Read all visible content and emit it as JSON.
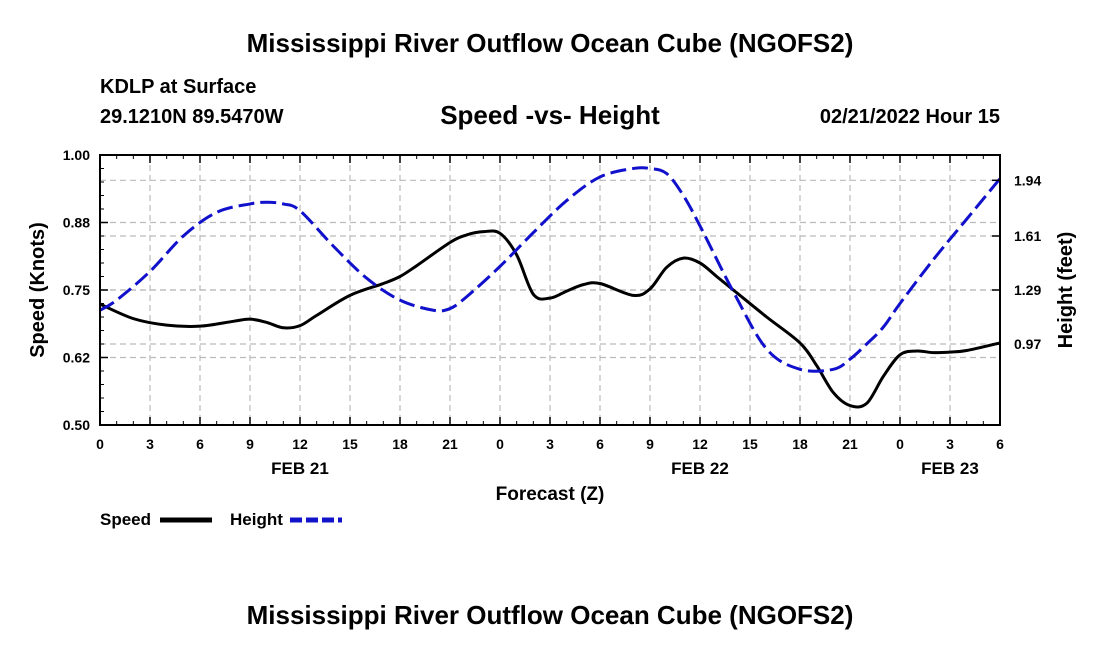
{
  "header": {
    "title": "Mississippi River Outflow Ocean Cube (NGOFS2)",
    "station": "KDLP at Surface",
    "coords": "29.1210N  89.5470W",
    "datetime": "02/21/2022 Hour 15"
  },
  "footer": {
    "title": "Mississippi River Outflow Ocean Cube (NGOFS2)"
  },
  "chart_data": {
    "type": "line",
    "title": "Speed -vs- Height",
    "xlabel": "Forecast (Z)",
    "ylabel_left": "Speed (Knots)",
    "ylabel_right": "Height (feet)",
    "x_range": [
      0,
      54
    ],
    "x_ticks": [
      0,
      3,
      6,
      9,
      12,
      15,
      18,
      21,
      24,
      27,
      30,
      33,
      36,
      39,
      42,
      45,
      48,
      51,
      54
    ],
    "x_tick_labels": [
      "0",
      "3",
      "6",
      "9",
      "12",
      "15",
      "18",
      "21",
      "0",
      "3",
      "6",
      "9",
      "12",
      "15",
      "18",
      "21",
      "0",
      "3",
      "6"
    ],
    "date_labels": [
      {
        "x": 12,
        "label": "FEB 21"
      },
      {
        "x": 36,
        "label": "FEB 22"
      },
      {
        "x": 51,
        "label": "FEB 23"
      }
    ],
    "ylim_left": [
      0.5,
      1.0
    ],
    "y_left_ticks": [
      0.5,
      0.625,
      0.75,
      0.875,
      1.0
    ],
    "y_left_tick_labels": [
      "0.50",
      "0.62",
      "0.75",
      "0.88",
      "1.00"
    ],
    "ylim_right": [
      0.49,
      2.09
    ],
    "y_right_ticks": [
      0.97,
      1.29,
      1.61,
      1.94
    ],
    "y_right_tick_labels": [
      "0.97",
      "1.29",
      "1.61",
      "1.94"
    ],
    "grid": true,
    "series": [
      {
        "name": "Speed",
        "axis": "left",
        "color": "#000000",
        "dash": "solid",
        "x": [
          0,
          2,
          4,
          6,
          8,
          9,
          10,
          11,
          12,
          13,
          15,
          17,
          18,
          19,
          21,
          22,
          23,
          24,
          25,
          26,
          27,
          28,
          29,
          30,
          32,
          33,
          34,
          35,
          36,
          37,
          38,
          40,
          42,
          43,
          44,
          45,
          46,
          47,
          48,
          49,
          50,
          51,
          52,
          54
        ],
        "y": [
          0.724,
          0.697,
          0.685,
          0.683,
          0.692,
          0.696,
          0.69,
          0.68,
          0.684,
          0.703,
          0.74,
          0.762,
          0.775,
          0.795,
          0.838,
          0.852,
          0.858,
          0.855,
          0.815,
          0.742,
          0.735,
          0.748,
          0.76,
          0.762,
          0.74,
          0.752,
          0.792,
          0.809,
          0.8,
          0.775,
          0.75,
          0.7,
          0.652,
          0.61,
          0.56,
          0.536,
          0.54,
          0.59,
          0.63,
          0.637,
          0.634,
          0.635,
          0.638,
          0.652
        ]
      },
      {
        "name": "Height",
        "axis": "right",
        "color": "#1111cc",
        "dash": "dashed",
        "x": [
          0,
          1,
          3,
          5,
          7,
          9,
          10,
          11,
          12,
          14,
          16,
          18,
          20,
          21,
          22,
          24,
          26,
          28,
          30,
          32,
          33,
          34,
          35,
          36,
          38,
          40,
          42,
          44,
          45,
          46,
          47,
          48,
          50,
          52,
          54
        ],
        "y": [
          1.17,
          1.23,
          1.4,
          1.61,
          1.75,
          1.8,
          1.81,
          1.8,
          1.76,
          1.55,
          1.36,
          1.23,
          1.17,
          1.18,
          1.25,
          1.43,
          1.63,
          1.82,
          1.96,
          2.01,
          2.01,
          1.98,
          1.85,
          1.67,
          1.28,
          0.94,
          0.82,
          0.82,
          0.88,
          0.97,
          1.07,
          1.21,
          1.47,
          1.71,
          1.95
        ]
      }
    ]
  },
  "legend": {
    "items": [
      {
        "label": "Speed",
        "color": "#000000"
      },
      {
        "label": "Height",
        "color": "#1111cc"
      }
    ]
  }
}
